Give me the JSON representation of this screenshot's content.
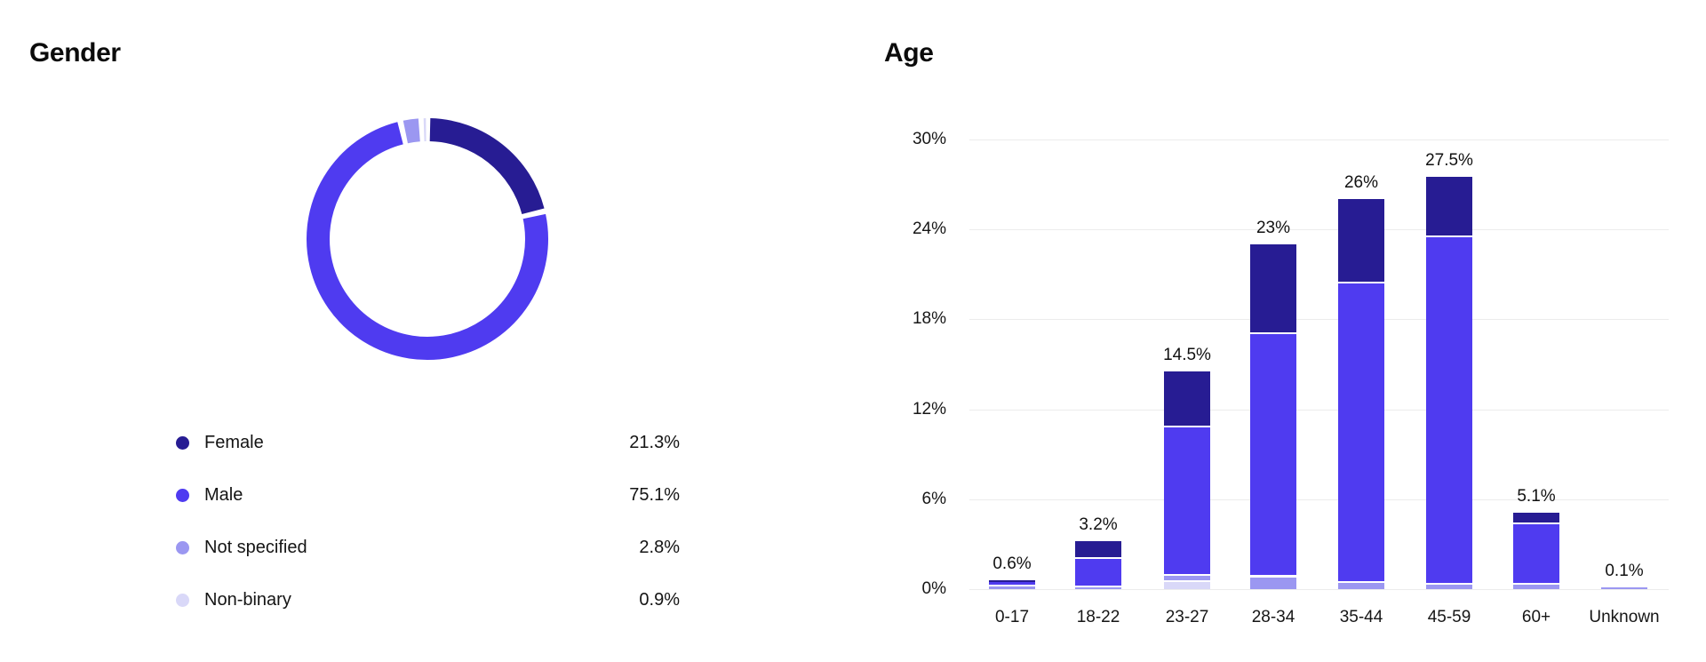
{
  "gender": {
    "title": "Gender",
    "legend": [
      {
        "label": "Female",
        "value": "21.3%"
      },
      {
        "label": "Male",
        "value": "75.1%"
      },
      {
        "label": "Not specified",
        "value": "2.8%"
      },
      {
        "label": "Non-binary",
        "value": "0.9%"
      }
    ]
  },
  "age": {
    "title": "Age",
    "bar_labels": [
      "0.6%",
      "3.2%",
      "14.5%",
      "23%",
      "26%",
      "27.5%",
      "5.1%",
      "0.1%"
    ],
    "y_ticks": [
      "30%",
      "24%",
      "18%",
      "12%",
      "6%",
      "0%"
    ]
  },
  "palette": {
    "female": "#271c93",
    "male": "#4f3bf0",
    "not_specified": "#9b97f1",
    "non_binary": "#d9d8f8",
    "gridline": "#ececec"
  },
  "chart_data": [
    {
      "type": "pie",
      "subtype": "donut",
      "title": "Gender",
      "labels": [
        "Female",
        "Male",
        "Not specified",
        "Non-binary"
      ],
      "values": [
        21.3,
        75.1,
        2.8,
        0.9
      ],
      "display_values": [
        "21.3%",
        "75.1%",
        "2.8%",
        "0.9%"
      ],
      "colors": [
        "#271c93",
        "#4f3bf0",
        "#9b97f1",
        "#d9d8f8"
      ],
      "start_angle_deg": 0,
      "direction": "clockwise",
      "legend_position": "bottom-left"
    },
    {
      "type": "bar",
      "subtype": "stacked",
      "title": "Age",
      "categories": [
        "0-17",
        "18-22",
        "23-27",
        "28-34",
        "35-44",
        "45-59",
        "60+",
        "Unknown"
      ],
      "totals": [
        0.6,
        3.2,
        14.5,
        23,
        26,
        27.5,
        5.1,
        0.1
      ],
      "totals_labels": [
        "0.6%",
        "3.2%",
        "14.5%",
        "23%",
        "26%",
        "27.5%",
        "5.1%",
        "0.1%"
      ],
      "series": [
        {
          "name": "Non-binary",
          "color": "#d9d8f8",
          "values": [
            0,
            0,
            0.5,
            0,
            0,
            0,
            0,
            0
          ]
        },
        {
          "name": "Not specified",
          "color": "#9b97f1",
          "values": [
            0.2,
            0.1,
            0.4,
            0.8,
            0.4,
            0.3,
            0.3,
            0.1
          ]
        },
        {
          "name": "Male",
          "color": "#4f3bf0",
          "values": [
            0.25,
            1.9,
            9.9,
            16.2,
            20.0,
            23.2,
            4.0,
            0
          ]
        },
        {
          "name": "Female",
          "color": "#271c93",
          "values": [
            0.15,
            1.2,
            3.7,
            6.0,
            5.6,
            4.0,
            0.8,
            0
          ]
        }
      ],
      "y_tick_labels": [
        "30%",
        "24%",
        "18%",
        "12%",
        "6%",
        "0%"
      ],
      "y_tick_values": [
        30,
        24,
        18,
        12,
        6,
        0
      ],
      "ylim": [
        0,
        30
      ],
      "grid": true,
      "legend_position": "none"
    }
  ]
}
